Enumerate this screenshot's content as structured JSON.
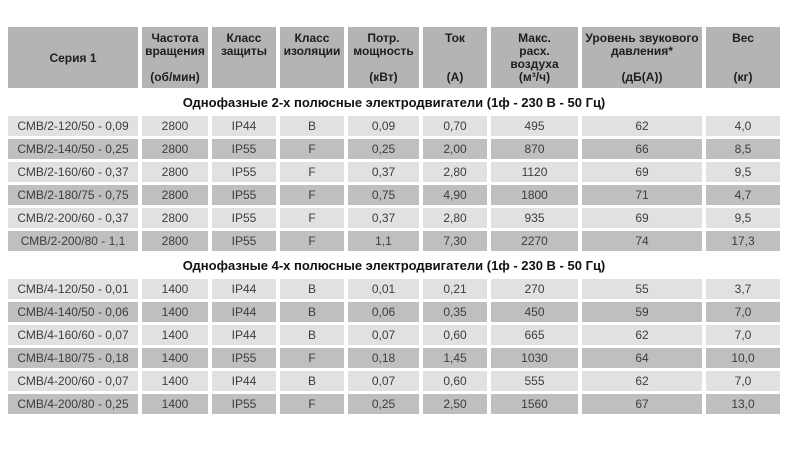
{
  "colors": {
    "header_cell": "#b4b4b4",
    "row_light": "#e1e1e1",
    "row_dark": "#bfbfbf",
    "background": "#ffffff",
    "text": "#3d3d3d"
  },
  "table": {
    "columns": [
      {
        "name": "Серия 1",
        "unit": ""
      },
      {
        "name": "Частота\nвращения",
        "unit": "(об/мин)"
      },
      {
        "name": "Класс\nзащиты",
        "unit": ""
      },
      {
        "name": "Класс\nизоляции",
        "unit": ""
      },
      {
        "name": "Потр.\nмощность",
        "unit": "(кВт)"
      },
      {
        "name": "Ток",
        "unit": "(А)"
      },
      {
        "name": "Макс.\nрасх.\nвоздуха",
        "unit": "(м³/ч)"
      },
      {
        "name": "Уровень звукового\nдавления*",
        "unit": "(дБ(А))"
      },
      {
        "name": "Вес",
        "unit": "(кг)"
      }
    ],
    "sections": [
      {
        "title": "Однофазные 2-х полюсные электродвигатели (1ф - 230 В - 50 Гц)",
        "rows": [
          [
            "СМВ/2-120/50 - 0,09",
            "2800",
            "IP44",
            "B",
            "0,09",
            "0,70",
            "495",
            "62",
            "4,0"
          ],
          [
            "СМВ/2-140/50 - 0,25",
            "2800",
            "IP55",
            "F",
            "0,25",
            "2,00",
            "870",
            "66",
            "8,5"
          ],
          [
            "СМВ/2-160/60 - 0,37",
            "2800",
            "IP55",
            "F",
            "0,37",
            "2,80",
            "1120",
            "69",
            "9,5"
          ],
          [
            "СМВ/2-180/75 - 0,75",
            "2800",
            "IP55",
            "F",
            "0,75",
            "4,90",
            "1800",
            "71",
            "4,7"
          ],
          [
            "СМВ/2-200/60 - 0,37",
            "2800",
            "IP55",
            "F",
            "0,37",
            "2,80",
            "935",
            "69",
            "9,5"
          ],
          [
            "СМВ/2-200/80 - 1,1",
            "2800",
            "IP55",
            "F",
            "1,1",
            "7,30",
            "2270",
            "74",
            "17,3"
          ]
        ]
      },
      {
        "title": "Однофазные 4-х полюсные электродвигатели (1ф - 230 В - 50 Гц)",
        "rows": [
          [
            "СМВ/4-120/50 - 0,01",
            "1400",
            "IP44",
            "B",
            "0,01",
            "0,21",
            "270",
            "55",
            "3,7"
          ],
          [
            "СМВ/4-140/50 - 0,06",
            "1400",
            "IP44",
            "B",
            "0,06",
            "0,35",
            "450",
            "59",
            "7,0"
          ],
          [
            "СМВ/4-160/60 - 0,07",
            "1400",
            "IP44",
            "B",
            "0,07",
            "0,60",
            "665",
            "62",
            "7,0"
          ],
          [
            "СМВ/4-180/75 - 0,18",
            "1400",
            "IP55",
            "F",
            "0,18",
            "1,45",
            "1030",
            "64",
            "10,0"
          ],
          [
            "СМВ/4-200/60 - 0,07",
            "1400",
            "IP44",
            "B",
            "0,07",
            "0,60",
            "555",
            "62",
            "7,0"
          ],
          [
            "СМВ/4-200/80 - 0,25",
            "1400",
            "IP55",
            "F",
            "0,25",
            "2,50",
            "1560",
            "67",
            "13,0"
          ]
        ]
      }
    ]
  }
}
